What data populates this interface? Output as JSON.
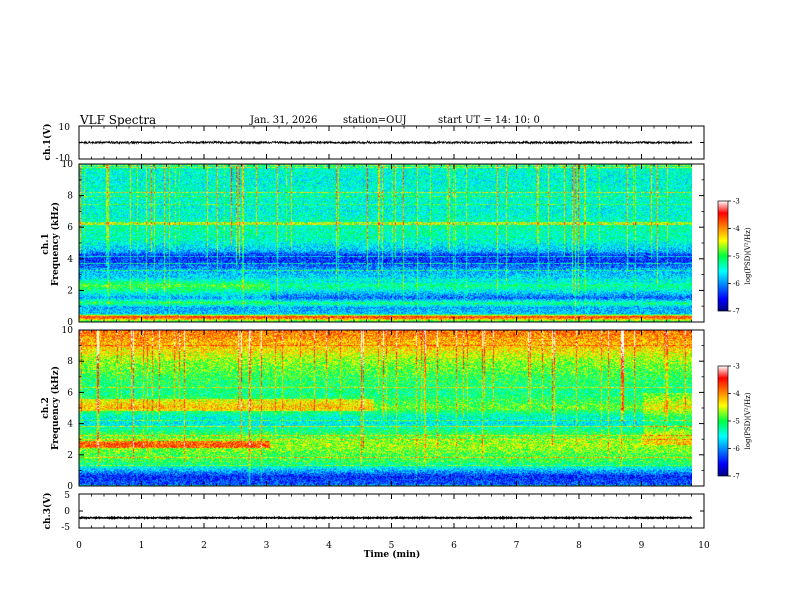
{
  "header": {
    "title": "VLF Spectra",
    "date": "Jan. 31, 2026",
    "station": "station=OUJ",
    "start_ut": "start UT =  14: 10: 0"
  },
  "chart_data": [
    {
      "type": "line",
      "name": "ch1-waveform",
      "ylabel": "ch.1(V)",
      "ylim": [
        -10,
        10
      ],
      "yticks": [
        "10",
        "-10"
      ],
      "xlim": [
        0,
        10
      ],
      "signal_level": 0.0,
      "noise_amplitude": 0.6,
      "data_end_min": 9.8
    },
    {
      "type": "heatmap",
      "name": "ch1-spectrogram",
      "ylabel_top": "ch.1",
      "ylabel": "Frequency (kHz)",
      "ylim": [
        0,
        10
      ],
      "yticks": [
        "0",
        "2",
        "4",
        "6",
        "8",
        "10"
      ],
      "xlim": [
        0,
        10
      ],
      "data_end_min": 9.8,
      "colorbar": {
        "label": "log(PSD)(V²/Hz)",
        "range": [
          -7,
          -3
        ],
        "ticks": [
          "-3",
          "-4",
          "-5",
          "-6",
          "-7"
        ]
      },
      "base_profile": [
        [
          0.0,
          -5.0
        ],
        [
          0.3,
          -3.4
        ],
        [
          0.5,
          -5.8
        ],
        [
          0.9,
          -5.9
        ],
        [
          1.2,
          -5.0
        ],
        [
          1.5,
          -5.9
        ],
        [
          2.0,
          -5.2
        ],
        [
          2.3,
          -4.9
        ],
        [
          2.8,
          -5.7
        ],
        [
          3.3,
          -5.9
        ],
        [
          3.7,
          -6.3
        ],
        [
          4.2,
          -6.4
        ],
        [
          4.5,
          -5.8
        ],
        [
          5.2,
          -5.4
        ],
        [
          6.0,
          -5.3
        ],
        [
          7.0,
          -5.5
        ],
        [
          8.0,
          -5.4
        ],
        [
          9.0,
          -5.5
        ],
        [
          10.0,
          -5.4
        ]
      ]
    },
    {
      "type": "heatmap",
      "name": "ch2-spectrogram",
      "ylabel_top": "ch.2",
      "ylabel": "Frequency (kHz)",
      "ylim": [
        0,
        10
      ],
      "yticks": [
        "0",
        "2",
        "4",
        "6",
        "8",
        "10"
      ],
      "xlim": [
        0,
        10
      ],
      "data_end_min": 9.8,
      "colorbar": {
        "label": "log(PSD)(V²/Hz)",
        "range": [
          -7,
          -3
        ],
        "ticks": [
          "-3",
          "-4",
          "-5",
          "-6",
          "-7"
        ]
      },
      "base_profile": [
        [
          0.0,
          -6.2
        ],
        [
          0.6,
          -6.4
        ],
        [
          1.0,
          -5.8
        ],
        [
          1.5,
          -5.0
        ],
        [
          2.0,
          -4.9
        ],
        [
          2.6,
          -4.6
        ],
        [
          3.0,
          -4.8
        ],
        [
          3.6,
          -5.2
        ],
        [
          4.0,
          -5.6
        ],
        [
          4.5,
          -5.4
        ],
        [
          5.0,
          -4.8
        ],
        [
          5.4,
          -5.0
        ],
        [
          6.0,
          -5.2
        ],
        [
          7.0,
          -5.0
        ],
        [
          8.0,
          -4.7
        ],
        [
          9.0,
          -4.2
        ],
        [
          10.0,
          -3.9
        ]
      ]
    },
    {
      "type": "line",
      "name": "ch3-waveform",
      "ylabel": "ch.3(V)",
      "ylim": [
        -5,
        5
      ],
      "yticks": [
        "5",
        "0",
        "-5"
      ],
      "xlim": [
        0,
        10
      ],
      "signal_level": -2.0,
      "noise_amplitude": 0.15,
      "data_end_min": 9.8
    }
  ],
  "x_axis": {
    "label": "Time (min)",
    "ticks": [
      "0",
      "1",
      "2",
      "3",
      "4",
      "5",
      "6",
      "7",
      "8",
      "9",
      "10"
    ]
  }
}
